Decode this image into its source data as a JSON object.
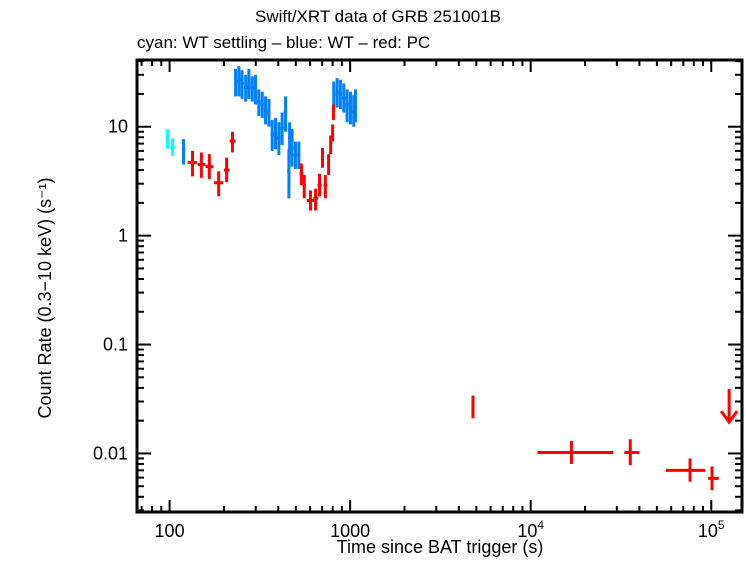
{
  "chart_data": {
    "type": "scatter",
    "title": "Swift/XRT data of GRB 251001B",
    "subtitle": "cyan: WT settling – blue: WT – red: PC",
    "xlabel": "Time since BAT trigger (s)",
    "ylabel": "Count Rate (0.3−10 keV) (s⁻¹)",
    "xscale": "log",
    "yscale": "log",
    "xlim": [
      66,
      148000
    ],
    "ylim": [
      0.0029,
      41
    ],
    "grid": false,
    "x_ticks": [
      {
        "value": 100,
        "label": "100"
      },
      {
        "value": 1000,
        "label": "1000"
      },
      {
        "value": 10000,
        "base": "10",
        "exp": "4"
      },
      {
        "value": 100000,
        "base": "10",
        "exp": "5"
      }
    ],
    "y_ticks": [
      {
        "value": 10,
        "label": "10"
      },
      {
        "value": 1,
        "label": "1"
      },
      {
        "value": 0.1,
        "label": "0.1"
      },
      {
        "value": 0.01,
        "label": "0.01"
      }
    ],
    "colors": {
      "cyan": "#00ffff",
      "blue": "#0080ff",
      "red": "#ff0000"
    },
    "series": [
      {
        "mode": "WT settling",
        "color": "#00ffff",
        "points": [
          [
            97.5,
            95,
            100,
            7.9,
            6.3,
            9.5
          ],
          [
            104,
            101,
            107,
            6.5,
            5.4,
            7.8
          ]
        ]
      },
      {
        "mode": "WT",
        "color": "#0080ff",
        "points": [
          [
            119.5,
            117,
            122,
            6.2,
            4.5,
            7.7
          ],
          [
            232,
            230,
            237,
            26,
            19,
            34
          ],
          [
            242,
            237,
            247,
            27,
            19,
            36
          ],
          [
            252,
            247,
            258,
            25,
            18,
            33
          ],
          [
            264,
            258,
            270,
            23,
            17,
            30
          ],
          [
            275,
            270,
            281,
            25,
            18,
            34
          ],
          [
            287,
            281,
            293,
            23,
            17,
            29
          ],
          [
            299,
            293,
            305,
            22.6,
            16,
            30
          ],
          [
            312,
            305,
            319,
            17,
            12.5,
            22
          ],
          [
            326,
            319,
            333,
            16,
            12,
            21
          ],
          [
            340,
            333,
            347,
            14.3,
            10.5,
            19
          ],
          [
            355,
            347,
            362,
            13.4,
            10,
            18
          ],
          [
            370,
            362,
            378,
            8.4,
            6,
            11.5
          ],
          [
            386,
            378,
            394,
            8.7,
            6.2,
            12
          ],
          [
            403,
            394,
            411,
            7.9,
            5.5,
            11
          ],
          [
            420,
            411,
            429,
            9.7,
            6.8,
            13.5
          ],
          [
            439,
            429,
            448,
            13.8,
            9,
            19
          ],
          [
            458,
            448,
            467,
            3.9,
            2.2,
            6.2
          ],
          [
            462,
            452,
            470,
            7.9,
            5.5,
            11
          ],
          [
            477,
            467,
            487,
            6.4,
            4.3,
            9.5
          ],
          [
            498,
            487,
            509,
            5.5,
            4.1,
            7.3
          ],
          [
            520,
            509,
            530,
            5.5,
            4.1,
            7.3
          ],
          [
            811,
            800,
            829,
            19.7,
            14.5,
            26
          ],
          [
            847,
            829,
            865,
            21,
            15,
            28
          ],
          [
            883,
            865,
            902,
            20,
            14.5,
            27
          ],
          [
            922,
            902,
            942,
            18.3,
            13.5,
            25
          ],
          [
            962,
            942,
            983,
            16,
            11,
            22
          ],
          [
            1004,
            983,
            1025,
            14.8,
            10.5,
            21
          ],
          [
            1047,
            1025,
            1060,
            13.8,
            10,
            19.5
          ],
          [
            1070,
            1060,
            1080,
            16,
            11,
            22
          ]
        ]
      },
      {
        "mode": "PC",
        "color": "#ff0000",
        "points": [
          [
            134,
            126,
            142,
            4.7,
            3.5,
            6.0
          ],
          [
            150,
            143,
            158,
            4.5,
            3.4,
            5.8
          ],
          [
            166,
            158,
            175,
            4.3,
            3.3,
            5.6
          ],
          [
            187,
            176,
            198,
            3.06,
            2.3,
            3.9
          ],
          [
            207,
            200,
            215,
            4.0,
            3.1,
            5.2
          ],
          [
            223,
            215,
            232,
            7.4,
            5.8,
            9.0
          ],
          [
            537,
            525,
            550,
            3.7,
            2.9,
            4.6
          ],
          [
            557,
            548,
            568,
            2.9,
            2.2,
            3.6
          ],
          [
            603,
            575,
            630,
            2.1,
            1.7,
            2.6
          ],
          [
            644,
            625,
            665,
            2.2,
            1.7,
            2.7
          ],
          [
            677,
            660,
            695,
            2.9,
            2.3,
            3.7
          ],
          [
            703,
            695,
            712,
            5.2,
            4.2,
            6.4
          ],
          [
            729,
            712,
            748,
            2.9,
            2.2,
            3.6
          ],
          [
            760,
            748,
            772,
            4.5,
            3.6,
            5.6
          ],
          [
            780,
            772,
            790,
            6.8,
            5.6,
            8.3
          ],
          [
            800,
            790,
            808,
            8.8,
            7.3,
            10.5
          ],
          [
            808,
            800,
            815,
            13.7,
            11.5,
            16
          ],
          [
            4790,
            4700,
            4880,
            0.027,
            0.021,
            0.034
          ],
          [
            16800,
            10900,
            28600,
            0.0102,
            0.008,
            0.013
          ],
          [
            35600,
            33000,
            40000,
            0.0102,
            0.0078,
            0.0135
          ],
          [
            76300,
            56000,
            92500,
            0.007,
            0.0055,
            0.009
          ],
          [
            101000,
            96000,
            110000,
            0.0059,
            0.0046,
            0.0076
          ]
        ],
        "upper_limits": [
          [
            125600,
            0.039
          ]
        ]
      }
    ]
  }
}
